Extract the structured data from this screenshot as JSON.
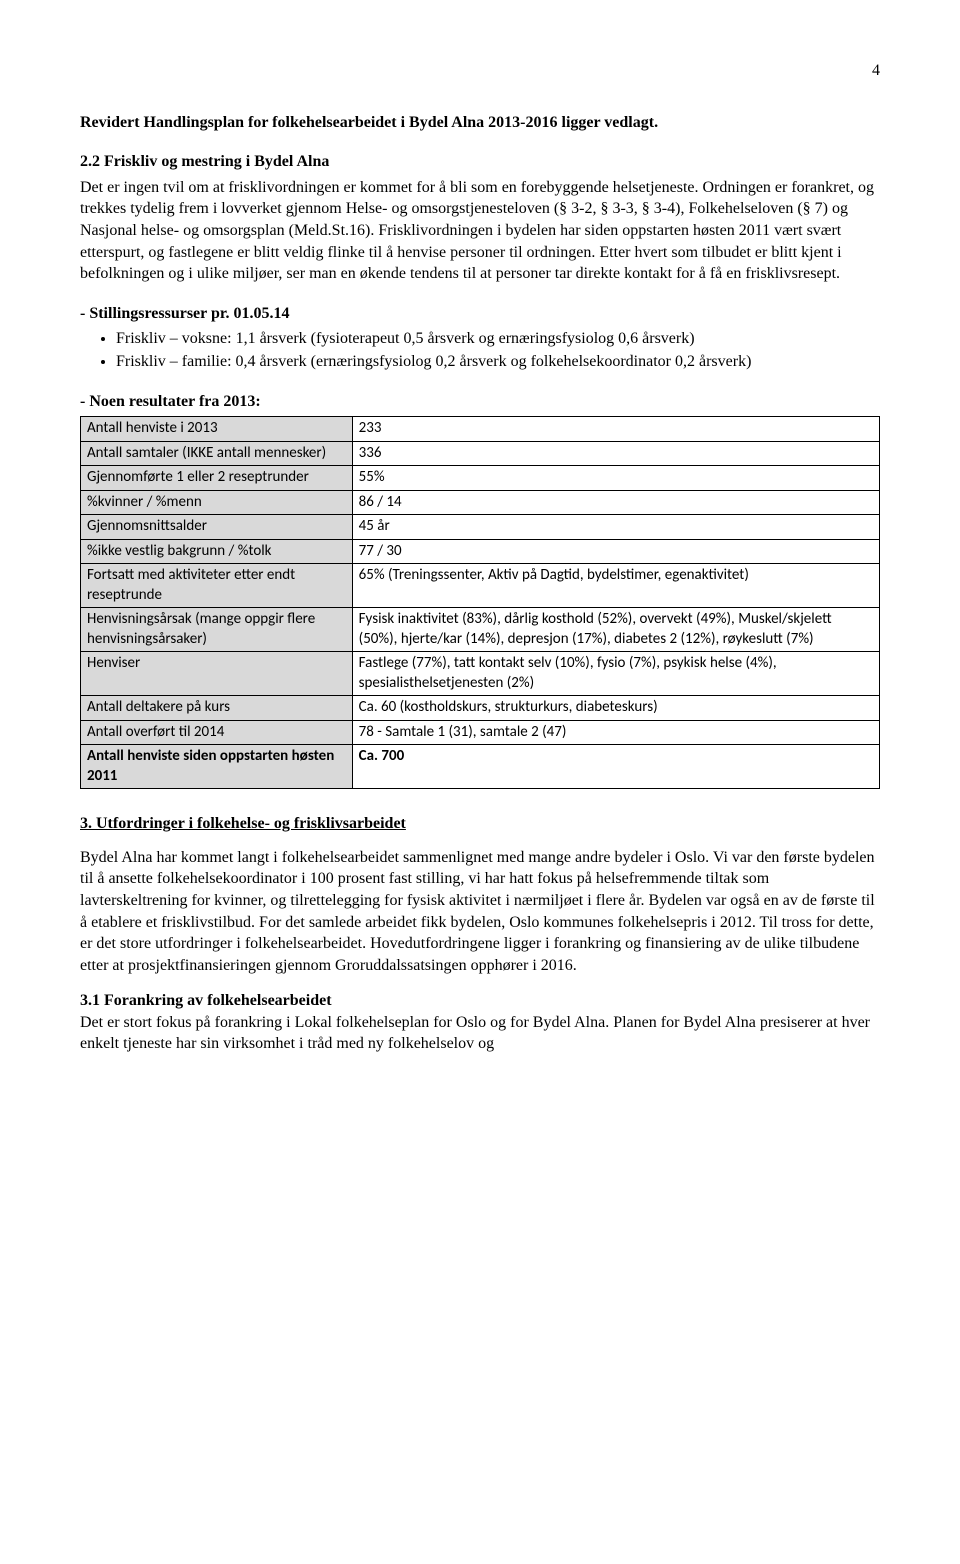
{
  "page_number": "4",
  "heading1": "Revidert Handlingsplan for folkehelsearbeidet i Bydel Alna 2013-2016 ligger vedlagt.",
  "section22_title": "2.2 Friskliv og mestring i Bydel Alna",
  "section22_body": "Det er ingen tvil om at frisklivordningen er kommet for å bli som en forebyggende helsetjeneste. Ordningen er forankret, og trekkes tydelig frem i lovverket gjennom Helse- og omsorgstjenesteloven (§ 3-2, § 3-3, § 3-4), Folkehelseloven (§ 7) og Nasjonal helse- og omsorgsplan (Meld.St.16). Frisklivordningen i bydelen har siden oppstarten høsten 2011 vært svært etterspurt, og fastlegene er blitt veldig flinke til å henvise personer til ordningen. Etter hvert som tilbudet er blitt kjent i befolkningen og i ulike miljøer, ser man en økende tendens til at personer tar direkte kontakt for å få en frisklivsresept.",
  "stillings_title": "- Stillingsressurser pr. 01.05.14",
  "stillings_bullets": [
    "Friskliv – voksne: 1,1 årsverk (fysioterapeut 0,5 årsverk og ernæringsfysiolog 0,6 årsverk)",
    "Friskliv – familie: 0,4 årsverk (ernæringsfysiolog 0,2 årsverk og folkehelsekoordinator 0,2 årsverk)"
  ],
  "results_title": "- Noen resultater fra 2013:",
  "table": {
    "columns": {
      "label_bg": "#d9d9d9",
      "border": "#000000",
      "label_width_pct": 34
    },
    "rows": [
      {
        "label": "Antall henviste i 2013",
        "value": "233",
        "bold": false
      },
      {
        "label": "Antall samtaler (IKKE antall mennesker)",
        "value": "336",
        "bold": false
      },
      {
        "label": "Gjennomførte 1 eller 2 reseptrunder",
        "value": "55%",
        "bold": false
      },
      {
        "label": "%kvinner / %menn",
        "value": "86 / 14",
        "bold": false
      },
      {
        "label": "Gjennomsnittsalder",
        "value": "45 år",
        "bold": false
      },
      {
        "label": "%ikke vestlig bakgrunn / %tolk",
        "value": "77 / 30",
        "bold": false
      },
      {
        "label": "Fortsatt med aktiviteter etter endt reseptrunde",
        "value": "65% (Treningssenter, Aktiv på Dagtid, bydelstimer, egenaktivitet)",
        "bold": false
      },
      {
        "label": "Henvisningsårsak (mange oppgir flere henvisningsårsaker)",
        "value": "Fysisk inaktivitet (83%), dårlig kosthold (52%), overvekt (49%), Muskel/skjelett (50%), hjerte/kar (14%), depresjon (17%), diabetes 2 (12%), røykeslutt (7%)",
        "bold": false
      },
      {
        "label": "Henviser",
        "value": "Fastlege (77%), tatt kontakt selv (10%),  fysio (7%), psykisk helse (4%), spesialisthelsetjenesten (2%)",
        "bold": false
      },
      {
        "label": "Antall deltakere på kurs",
        "value": "Ca. 60 (kostholdskurs, strukturkurs, diabeteskurs)",
        "bold": false
      },
      {
        "label": "Antall overført til 2014",
        "value": "78 - Samtale 1 (31), samtale 2 (47)",
        "bold": false
      },
      {
        "label": "Antall henviste siden oppstarten høsten 2011",
        "value": "Ca. 700",
        "bold": true
      }
    ]
  },
  "section3_title": "3. Utfordringer i folkehelse- og frisklivsarbeidet",
  "section3_body": "Bydel Alna har kommet langt i folkehelsearbeidet sammenlignet med mange andre bydeler i Oslo. Vi var den første bydelen til å ansette folkehelsekoordinator i 100 prosent fast stilling, vi har hatt fokus på helsefremmende tiltak som lavterskeltrening for kvinner, og tilrettelegging for fysisk aktivitet i nærmiljøet i flere år. Bydelen var også en av de første til å etablere et frisklivstilbud. For det samlede arbeidet fikk bydelen, Oslo kommunes folkehelsepris i 2012. Til tross for dette, er det store utfordringer i folkehelsearbeidet. Hovedutfordringene ligger i forankring og finansiering av de ulike tilbudene etter at prosjektfinansieringen gjennom Groruddalssatsingen opphører i 2016.",
  "section31_title": "3.1 Forankring av folkehelsearbeidet",
  "section31_body": "Det er stort fokus på forankring i Lokal folkehelseplan for Oslo og for Bydel Alna. Planen for Bydel Alna presiserer at hver enkelt tjeneste har sin virksomhet i tråd med ny folkehelselov og"
}
